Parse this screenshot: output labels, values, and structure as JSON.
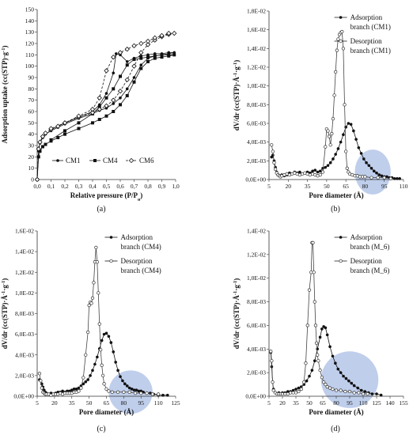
{
  "chart_data": [
    {
      "type": "line",
      "panel": "a",
      "caption": "(a)",
      "xlabel": "Relative pressure (P/P",
      "xlabel_sub": "o",
      "xlabel_tail": ")",
      "ylabel": "Adsorption uptake (cc(STP)·g",
      "ylabel_sup": "-1",
      "ylabel_tail": ")",
      "xlim": [
        0,
        1.0
      ],
      "ylim": [
        0,
        150
      ],
      "xticks": [
        "0,0",
        "0,1",
        "0,2",
        "0,3",
        "0,4",
        "0,5",
        "0,6",
        "0,7",
        "0,8",
        "0,9",
        "1,0"
      ],
      "yticks": [
        "0",
        "10",
        "20",
        "30",
        "40",
        "50",
        "60",
        "70",
        "80",
        "90",
        "100",
        "110",
        "120",
        "130",
        "140",
        "150"
      ],
      "legend_position": "bottom-center",
      "series": [
        {
          "name": "CM1",
          "marker": "circle",
          "x": [
            0.0,
            0.01,
            0.02,
            0.04,
            0.06,
            0.1,
            0.15,
            0.2,
            0.3,
            0.4,
            0.45,
            0.5,
            0.55,
            0.6,
            0.65,
            0.7,
            0.75,
            0.8,
            0.85,
            0.9,
            0.95,
            0.99,
            0.95,
            0.9,
            0.85,
            0.8,
            0.75,
            0.7,
            0.65,
            0.6,
            0.57,
            0.55,
            0.5,
            0.45,
            0.4,
            0.3,
            0.2,
            0.1
          ],
          "y": [
            0,
            25,
            32,
            37,
            40,
            43,
            46,
            49,
            54,
            58,
            61,
            63,
            67,
            72,
            80,
            90,
            101,
            107,
            109,
            110,
            111,
            112,
            112,
            111,
            111,
            110,
            109,
            107,
            104,
            110,
            111,
            94,
            76,
            66,
            60,
            55,
            50,
            44
          ]
        },
        {
          "name": "CM4",
          "marker": "square",
          "x": [
            0.0,
            0.01,
            0.02,
            0.04,
            0.06,
            0.1,
            0.15,
            0.2,
            0.3,
            0.4,
            0.45,
            0.5,
            0.55,
            0.6,
            0.65,
            0.7,
            0.75,
            0.8,
            0.85,
            0.9,
            0.95,
            0.99,
            0.95,
            0.9,
            0.85,
            0.8,
            0.75,
            0.7,
            0.65,
            0.6,
            0.55,
            0.5,
            0.45,
            0.4,
            0.3,
            0.2,
            0.1
          ],
          "y": [
            0,
            20,
            25,
            29,
            31,
            34,
            37,
            40,
            45,
            50,
            53,
            56,
            60,
            66,
            74,
            86,
            98,
            104,
            107,
            108,
            109,
            110,
            110,
            110,
            109,
            108,
            107,
            106,
            101,
            91,
            80,
            72,
            64,
            58,
            50,
            43,
            35
          ]
        },
        {
          "name": "CM6",
          "marker": "diamond",
          "x": [
            0.0,
            0.01,
            0.02,
            0.04,
            0.06,
            0.1,
            0.15,
            0.2,
            0.3,
            0.4,
            0.45,
            0.5,
            0.55,
            0.6,
            0.65,
            0.7,
            0.75,
            0.8,
            0.85,
            0.9,
            0.95,
            0.99,
            0.95,
            0.9,
            0.85,
            0.8,
            0.75,
            0.7,
            0.65,
            0.6,
            0.55,
            0.5,
            0.45,
            0.4,
            0.3,
            0.2,
            0.1
          ],
          "y": [
            0,
            27,
            33,
            38,
            41,
            44,
            47,
            50,
            55,
            59,
            62,
            65,
            70,
            78,
            88,
            100,
            112,
            119,
            123,
            126,
            128,
            129,
            129,
            127,
            125,
            122,
            120,
            118,
            115,
            112,
            108,
            96,
            72,
            62,
            56,
            50,
            45
          ]
        }
      ]
    },
    {
      "type": "line",
      "panel": "b",
      "caption": "(b)",
      "xlabel": "Pore diameter (Å)",
      "ylabel": "dV/dr (cc(STP)·Å",
      "ylabel_sup": "-1",
      "ylabel_mid": "·g",
      "ylabel_sup2": "-1",
      "ylabel_tail": ")",
      "xlim": [
        5,
        110
      ],
      "ylim": [
        0,
        0.018
      ],
      "xticks": [
        "5",
        "20",
        "35",
        "50",
        "65",
        "80",
        "95",
        "110"
      ],
      "xtick_values": [
        5,
        20,
        35,
        50,
        65,
        80,
        95,
        110
      ],
      "yticks": [
        "0,0E+00",
        "2,0E-03",
        "4,0E-03",
        "6,0E-03",
        "8,0E-03",
        "1,0E-02",
        "1,2E-02",
        "1,4E-02",
        "1,6E-02",
        "1,8E-02"
      ],
      "legend_position": "top-right",
      "highlight_ellipse": {
        "cx": 86,
        "cy": 0.0008,
        "rx": 14,
        "ry": 0.0024
      },
      "series": [
        {
          "name": "Adsorption branch (CM1)",
          "marker": "filled",
          "x": [
            7,
            8,
            9,
            10,
            11,
            12,
            13,
            14,
            15,
            17,
            19,
            21,
            23,
            25,
            27,
            29,
            31,
            33,
            35,
            37,
            39,
            41,
            43,
            45,
            47,
            49,
            51,
            53,
            55,
            57,
            59,
            61,
            63,
            65,
            67,
            69,
            71,
            73,
            75,
            77,
            79,
            81,
            83,
            85,
            87,
            89,
            91,
            93,
            95,
            97,
            99,
            101,
            103,
            105,
            107
          ],
          "y": [
            0.0024,
            0.0026,
            0.002,
            0.0013,
            0.0008,
            0.0005,
            0.0004,
            0.0004,
            0.0005,
            0.0004,
            0.0005,
            0.0007,
            0.0006,
            0.0008,
            0.0007,
            0.0008,
            0.0006,
            0.0007,
            0.0008,
            0.0007,
            0.0009,
            0.001,
            0.0008,
            0.0009,
            0.0012,
            0.0013,
            0.0015,
            0.0018,
            0.0022,
            0.0027,
            0.0033,
            0.004,
            0.0048,
            0.0056,
            0.006,
            0.0059,
            0.0052,
            0.0043,
            0.0034,
            0.0028,
            0.0022,
            0.0018,
            0.0015,
            0.0012,
            0.0009,
            0.0007,
            0.0005,
            0.0004,
            0.0003,
            0.0003,
            0.0002,
            0.0002,
            0.0001,
            0.0001,
            0.0001
          ]
        },
        {
          "name": "Desorption branch (CM1)",
          "marker": "open",
          "x": [
            7,
            8,
            9,
            10,
            11,
            12,
            13,
            14,
            15,
            17,
            19,
            21,
            23,
            25,
            27,
            29,
            31,
            33,
            35,
            37,
            39,
            41,
            43,
            45,
            47,
            49,
            50,
            51,
            52,
            53,
            54,
            55,
            56,
            57,
            58,
            59,
            60,
            61,
            62,
            63,
            64,
            65,
            66,
            67,
            68,
            70,
            72,
            74,
            76,
            78,
            80,
            85,
            90,
            95,
            100
          ],
          "y": [
            0.0037,
            0.003,
            0.0018,
            0.0011,
            0.0007,
            0.0005,
            0.0004,
            0.0003,
            0.0004,
            0.0005,
            0.0006,
            0.0005,
            0.0006,
            0.0007,
            0.0006,
            0.0005,
            0.0006,
            0.0007,
            0.0006,
            0.0005,
            0.0006,
            0.0005,
            0.0004,
            0.0005,
            0.0008,
            0.0035,
            0.0054,
            0.0052,
            0.0046,
            0.0037,
            0.0049,
            0.0065,
            0.009,
            0.0115,
            0.0138,
            0.015,
            0.0155,
            0.0157,
            0.0158,
            0.014,
            0.008,
            0.003,
            0.0012,
            0.0008,
            0.0006,
            0.0005,
            0.0004,
            0.0004,
            0.0003,
            0.0003,
            0.0003,
            0.0002,
            0.0002,
            0.0002,
            0.0001
          ]
        }
      ]
    },
    {
      "type": "line",
      "panel": "c",
      "caption": "(c)",
      "xlabel": "Pore diameter (Å)",
      "ylabel": "dV/dr (cc(STP)·Å",
      "ylabel_sup": "-1",
      "ylabel_mid": "·g",
      "ylabel_sup2": "-1",
      "ylabel_tail": ")",
      "xlim": [
        5,
        125
      ],
      "ylim": [
        0,
        0.016
      ],
      "xticks": [
        "5",
        "20",
        "35",
        "50",
        "65",
        "80",
        "95",
        "110",
        "125"
      ],
      "xtick_values": [
        5,
        20,
        35,
        50,
        65,
        80,
        95,
        110,
        125
      ],
      "yticks": [
        "0,0E+00",
        "2,0E-03",
        "4,0E-03",
        "6,0E-03",
        "8,0E-03",
        "1,0E-02",
        "1,2E-02",
        "1,4E-02",
        "1,6E-02"
      ],
      "legend_position": "top-right",
      "highlight_ellipse": {
        "cx": 86,
        "cy": 0.0004,
        "rx": 19,
        "ry": 0.0021
      },
      "series": [
        {
          "name": "Adsorption branch (CM4)",
          "marker": "filled",
          "x": [
            7,
            8,
            9,
            10,
            11,
            12,
            13,
            15,
            17,
            19,
            21,
            23,
            25,
            27,
            29,
            31,
            33,
            35,
            37,
            39,
            41,
            43,
            45,
            47,
            49,
            51,
            53,
            55,
            57,
            59,
            61,
            63,
            65,
            67,
            69,
            71,
            73,
            75,
            77,
            79,
            81,
            83,
            85,
            87,
            89,
            91,
            93,
            95,
            97,
            100,
            103,
            106,
            110,
            114,
            118
          ],
          "y": [
            0.0016,
            0.0015,
            0.0012,
            0.0009,
            0.0006,
            0.0004,
            0.0003,
            0.0002,
            0.0003,
            0.0002,
            0.0003,
            0.0004,
            0.0004,
            0.0005,
            0.0004,
            0.0005,
            0.0005,
            0.0006,
            0.0007,
            0.0007,
            0.0008,
            0.001,
            0.0012,
            0.0014,
            0.0016,
            0.002,
            0.0025,
            0.0031,
            0.0038,
            0.0046,
            0.0054,
            0.006,
            0.0061,
            0.0058,
            0.0052,
            0.0043,
            0.0033,
            0.0025,
            0.0019,
            0.0015,
            0.0012,
            0.001,
            0.0008,
            0.0007,
            0.0006,
            0.0006,
            0.0005,
            0.0005,
            0.0004,
            0.0003,
            0.0003,
            0.0002,
            0.0001,
            0.0001,
            0.0001
          ]
        },
        {
          "name": "Desorption branch (CM4)",
          "marker": "open",
          "x": [
            7,
            8,
            9,
            10,
            11,
            12,
            13,
            15,
            17,
            19,
            21,
            23,
            25,
            27,
            29,
            31,
            33,
            35,
            37,
            39,
            41,
            43,
            45,
            47,
            49,
            50,
            51,
            52,
            53,
            54,
            55,
            56,
            57,
            58,
            59,
            60,
            61,
            62,
            63,
            65,
            67,
            70,
            75,
            80,
            85,
            90,
            95,
            100,
            105,
            110
          ],
          "y": [
            0.0022,
            0.0015,
            0.0008,
            0.0004,
            0.0003,
            0.0002,
            0.0002,
            0.0002,
            0.0001,
            0.0002,
            0.0002,
            0.0002,
            0.0003,
            0.0002,
            0.0003,
            0.0003,
            0.0003,
            0.0003,
            0.0004,
            0.0004,
            0.0005,
            0.0008,
            0.0018,
            0.004,
            0.0062,
            0.0088,
            0.0091,
            0.009,
            0.0095,
            0.011,
            0.013,
            0.0144,
            0.013,
            0.01,
            0.007,
            0.0045,
            0.003,
            0.002,
            0.0012,
            0.0007,
            0.0005,
            0.0004,
            0.0004,
            0.0004,
            0.0004,
            0.0003,
            0.0003,
            0.0003,
            0.0002,
            0.0002
          ]
        }
      ]
    },
    {
      "type": "line",
      "panel": "d",
      "caption": "(d)",
      "xlabel": "Pore diameter (Å)",
      "ylabel": "dV/dr (cc(STP)·Å",
      "ylabel_sup": "-1",
      "ylabel_mid": "·g",
      "ylabel_sup2": "-1",
      "ylabel_tail": ")",
      "xlim": [
        5,
        155
      ],
      "ylim": [
        0,
        0.014
      ],
      "xticks": [
        "5",
        "20",
        "35",
        "50",
        "65",
        "80",
        "95",
        "110",
        "125",
        "140",
        "155"
      ],
      "xtick_values": [
        5,
        20,
        35,
        50,
        65,
        80,
        95,
        110,
        125,
        140,
        155
      ],
      "yticks": [
        "0,0E+00",
        "2,0E-03",
        "4,0E-03",
        "6,0E-03",
        "8,0E-03",
        "1,0E-02",
        "1,2E-02",
        "1,4E-02"
      ],
      "legend_position": "top-right",
      "highlight_ellipse": {
        "cx": 95,
        "cy": 0.0014,
        "rx": 32,
        "ry": 0.0024
      },
      "series": [
        {
          "name": "Adsorption branch (M_6)",
          "marker": "filled",
          "x": [
            7,
            8,
            9,
            10,
            12,
            14,
            16,
            18,
            20,
            23,
            26,
            29,
            32,
            35,
            38,
            41,
            44,
            47,
            50,
            53,
            56,
            59,
            62,
            64,
            66,
            68,
            70,
            73,
            76,
            79,
            82,
            85,
            88,
            91,
            94,
            97,
            100,
            104,
            108,
            112,
            116,
            120,
            125,
            130
          ],
          "y": [
            0.0037,
            0.0025,
            0.0012,
            0.0006,
            0.0003,
            0.0002,
            0.0003,
            0.0002,
            0.0003,
            0.0003,
            0.0004,
            0.0004,
            0.0005,
            0.0006,
            0.0007,
            0.0008,
            0.001,
            0.0013,
            0.0017,
            0.0022,
            0.003,
            0.004,
            0.005,
            0.0057,
            0.0059,
            0.0058,
            0.0052,
            0.0042,
            0.0034,
            0.0028,
            0.0023,
            0.002,
            0.0017,
            0.0015,
            0.0013,
            0.0011,
            0.0009,
            0.0007,
            0.0005,
            0.0004,
            0.0003,
            0.0002,
            0.0002,
            0.0001
          ]
        },
        {
          "name": "Desorption branch (M_6)",
          "marker": "open",
          "x": [
            7,
            8,
            9,
            10,
            12,
            14,
            16,
            18,
            20,
            23,
            26,
            29,
            32,
            35,
            38,
            41,
            44,
            46,
            48,
            50,
            52,
            53,
            54,
            55,
            56,
            57,
            58,
            59,
            60,
            62,
            64,
            66,
            68,
            70,
            73,
            76,
            80,
            85,
            90,
            95,
            100,
            105,
            110,
            115
          ],
          "y": [
            0.0038,
            0.003,
            0.0012,
            0.0005,
            0.0003,
            0.0002,
            0.0002,
            0.0002,
            0.0002,
            0.0002,
            0.0002,
            0.0003,
            0.0003,
            0.0003,
            0.0004,
            0.0006,
            0.0012,
            0.0028,
            0.006,
            0.009,
            0.0105,
            0.013,
            0.013,
            0.0105,
            0.008,
            0.006,
            0.0045,
            0.0035,
            0.003,
            0.0022,
            0.0016,
            0.0012,
            0.001,
            0.0008,
            0.0007,
            0.0006,
            0.0005,
            0.0005,
            0.0004,
            0.0004,
            0.0003,
            0.0003,
            0.0002,
            0.0002
          ]
        }
      ]
    }
  ]
}
